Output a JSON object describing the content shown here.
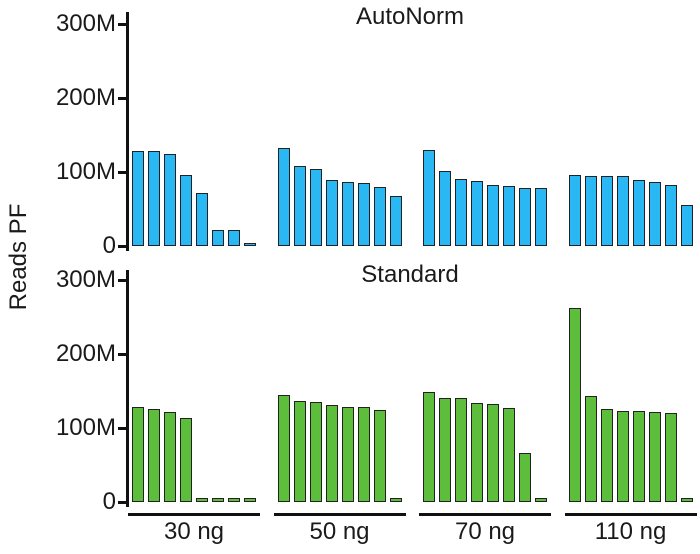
{
  "figure": {
    "ylabel": "Reads PF",
    "background_color": "#ffffff",
    "text_color": "#1a1a1a",
    "axis_color": "#111111",
    "bar_stroke_color": "#222222"
  },
  "chart_data": [
    {
      "type": "bar",
      "title": "AutoNorm",
      "bar_color": "#2ab8f5",
      "unit": "millions of reads (M)",
      "ylabel": "Reads PF",
      "ylim": [
        0,
        300
      ],
      "ytick_values": [
        0,
        100,
        200,
        300
      ],
      "ytick_labels": [
        "0",
        "100M",
        "200M",
        "300M"
      ],
      "grid": "off",
      "legend": "none",
      "show_group_labels": false,
      "categories": [
        "30 ng",
        "50 ng",
        "70 ng",
        "110 ng"
      ],
      "groups": [
        {
          "label": "30 ng",
          "values": [
            128,
            128,
            124,
            96,
            71,
            22,
            22,
            4
          ]
        },
        {
          "label": "50 ng",
          "values": [
            133,
            108,
            104,
            89,
            87,
            85,
            80,
            68
          ]
        },
        {
          "label": "70 ng",
          "values": [
            130,
            102,
            90,
            88,
            82,
            81,
            79,
            78
          ]
        },
        {
          "label": "110 ng",
          "values": [
            96,
            95,
            95,
            94,
            89,
            86,
            82,
            55
          ]
        }
      ]
    },
    {
      "type": "bar",
      "title": "Standard",
      "bar_color": "#5cbe3a",
      "unit": "millions of reads (M)",
      "ylabel": "Reads PF",
      "ylim": [
        0,
        300
      ],
      "ytick_values": [
        0,
        100,
        200,
        300
      ],
      "ytick_labels": [
        "0",
        "100M",
        "200M",
        "300M"
      ],
      "grid": "off",
      "legend": "none",
      "show_group_labels": true,
      "categories": [
        "30 ng",
        "50 ng",
        "70 ng",
        "110 ng"
      ],
      "groups": [
        {
          "label": "30 ng",
          "values": [
            128,
            126,
            121,
            114,
            5,
            5,
            5,
            5
          ]
        },
        {
          "label": "50 ng",
          "values": [
            144,
            136,
            135,
            131,
            129,
            128,
            124,
            5
          ]
        },
        {
          "label": "70 ng",
          "values": [
            149,
            141,
            140,
            134,
            133,
            127,
            66,
            5
          ]
        },
        {
          "label": "110 ng",
          "values": [
            262,
            143,
            125,
            123,
            123,
            122,
            120,
            5
          ]
        }
      ]
    }
  ]
}
